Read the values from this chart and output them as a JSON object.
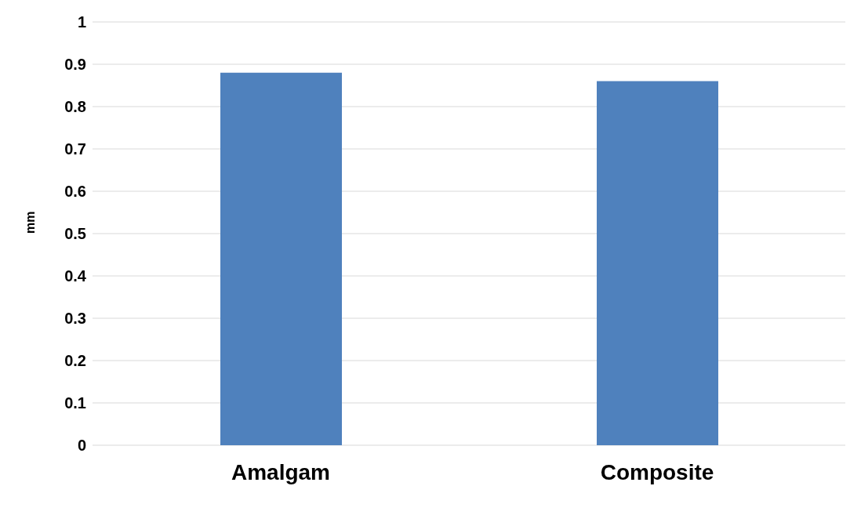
{
  "chart_data": {
    "type": "bar",
    "ylabel": "mm",
    "categories": [
      "Amalgam",
      "Composite"
    ],
    "values": [
      0.88,
      0.86
    ],
    "color": "#4f81bd",
    "ylim": [
      0,
      1
    ],
    "yticks": [
      0,
      0.1,
      0.2,
      0.3,
      0.4,
      0.5,
      0.6,
      0.7,
      0.8,
      0.9,
      1
    ],
    "grid": "y"
  }
}
